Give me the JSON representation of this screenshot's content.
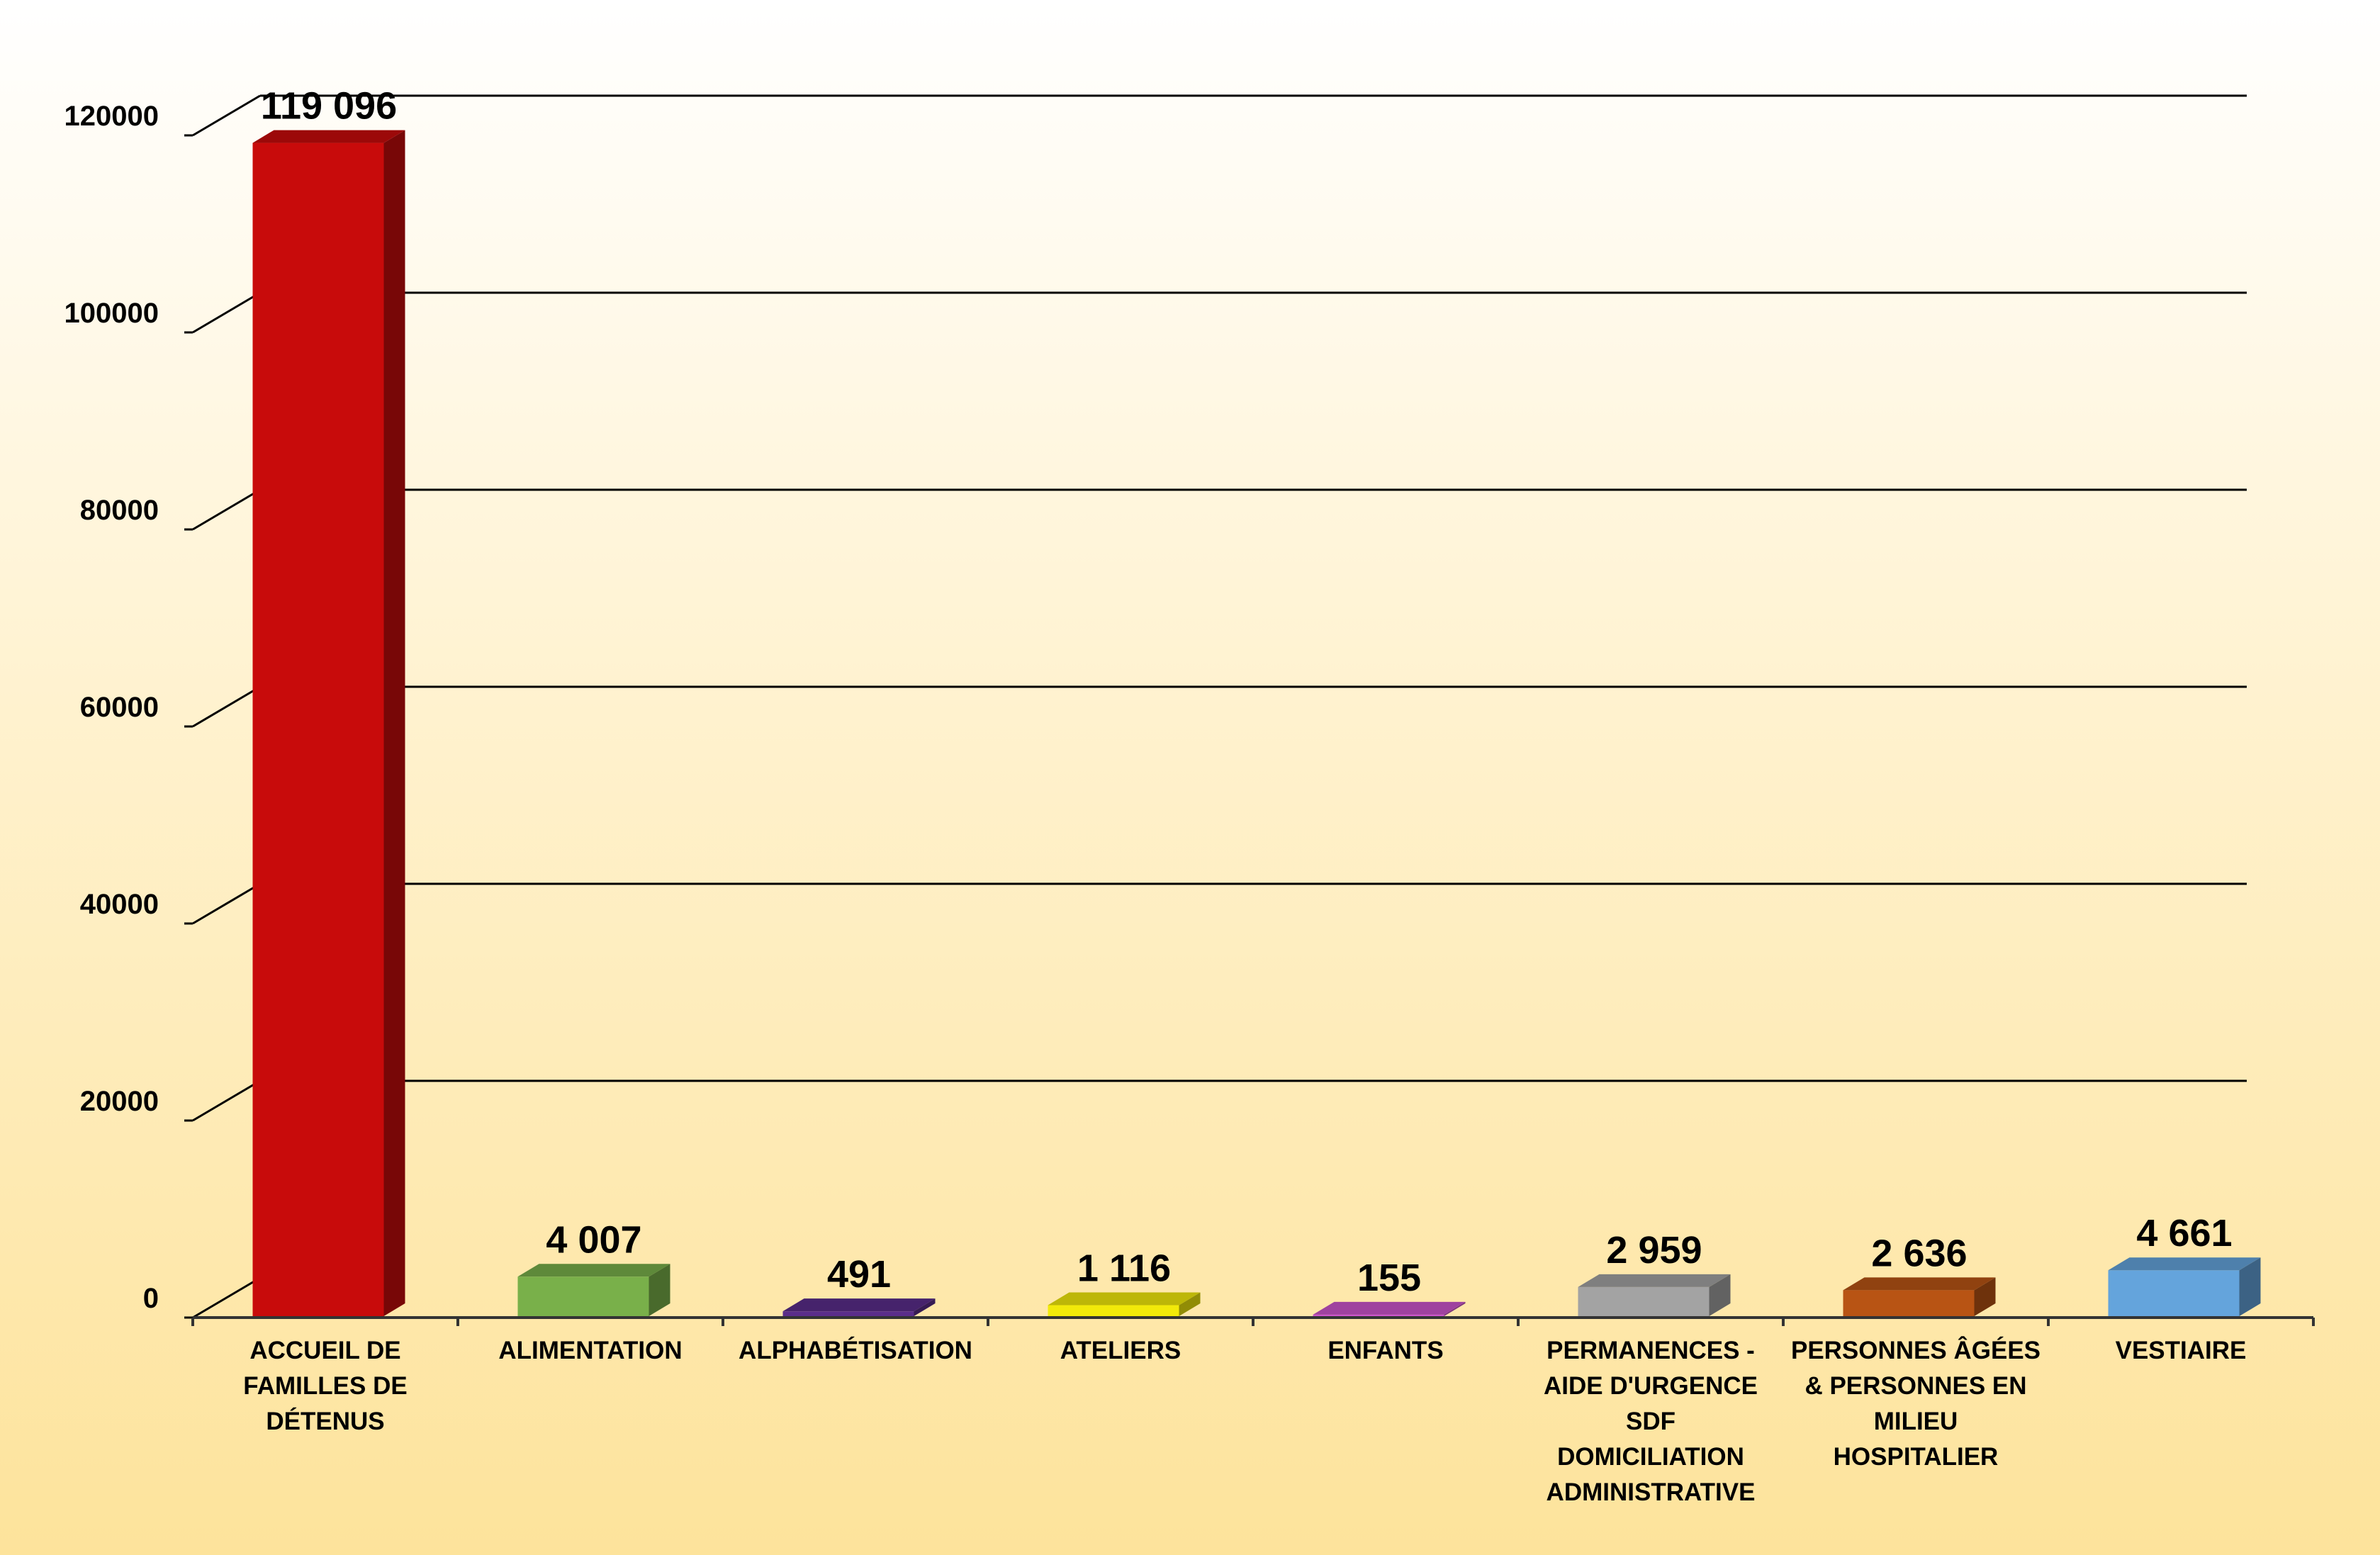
{
  "chart_data": {
    "type": "bar",
    "title": "",
    "xlabel": "",
    "ylabel": "",
    "ylim": [
      0,
      120000
    ],
    "yticks": [
      "0",
      "20000",
      "40000",
      "60000",
      "80000",
      "100000",
      "120000"
    ],
    "grid": true,
    "categories": [
      [
        "ACCUEIL DE",
        "FAMILLES DE",
        "DÉTENUS"
      ],
      [
        "ALIMENTATION"
      ],
      [
        "ALPHABÉTISATION"
      ],
      [
        "ATELIERS"
      ],
      [
        "ENFANTS"
      ],
      [
        "PERMANENCES -",
        "AIDE D'URGENCE",
        "SDF",
        "DOMICILIATION",
        "ADMINISTRATIVE"
      ],
      [
        "PERSONNES ÂGÉES",
        "& PERSONNES EN",
        "MILIEU",
        "HOSPITALIER"
      ],
      [
        "VESTIAIRE"
      ]
    ],
    "values": [
      119096,
      4007,
      491,
      1116,
      155,
      2959,
      2636,
      4661
    ],
    "value_labels": [
      "119 096",
      "4 007",
      "491",
      "1 116",
      "155",
      "2 959",
      "2 636",
      "4 661"
    ],
    "colors": [
      "#c80b0b",
      "#79b04a",
      "#5a2d8a",
      "#f2ea0a",
      "#cc55cc",
      "#a3a3a3",
      "#b85414",
      "#64a4dc"
    ]
  }
}
